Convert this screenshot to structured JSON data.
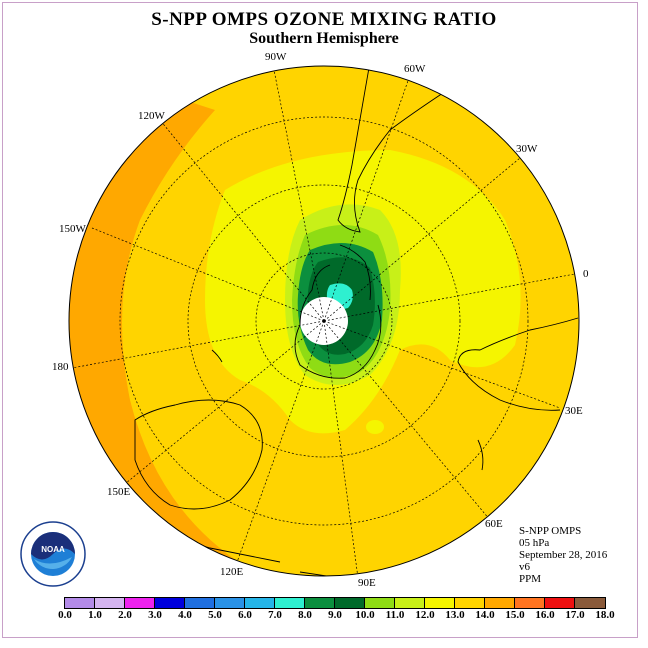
{
  "title": "S-NPP OMPS OZONE MIXING RATIO",
  "subtitle": "Southern Hemisphere",
  "longitudes": {
    "w90": "90W",
    "w60": "60W",
    "w30": "30W",
    "w120": "120W",
    "w150": "150W",
    "e0": "0",
    "w180": "180",
    "e30": "30E",
    "e60": "60E",
    "e90": "90E",
    "e120": "120E",
    "e150": "150E"
  },
  "info": {
    "instrument": "S-NPP OMPS",
    "level": "05 hPa",
    "date": "September 28, 2016",
    "version": "v6",
    "units": "PPM"
  },
  "logo_text": "NOAA",
  "colorbar": {
    "labels": [
      "0.0",
      "1.0",
      "2.0",
      "3.0",
      "4.0",
      "5.0",
      "6.0",
      "7.0",
      "8.0",
      "9.0",
      "10.0",
      "11.0",
      "12.0",
      "13.0",
      "14.0",
      "15.0",
      "16.0",
      "17.0",
      "18.0"
    ],
    "colors": [
      "#b38be8",
      "#d4b4f0",
      "#ee22ee",
      "#0000dd",
      "#1f6fe0",
      "#2a92e6",
      "#25b5e8",
      "#2ef0d0",
      "#0b8f3e",
      "#006a2a",
      "#8fdc14",
      "#c8f018",
      "#f5f500",
      "#ffd400",
      "#ffa800",
      "#ff7420",
      "#ee1010",
      "#8a5a3a"
    ]
  },
  "map_colors": {
    "outer": "#ffa800",
    "main": "#ffd400",
    "yellow": "#f5f500",
    "lightgreen": "#c8f018",
    "green": "#8fdc14",
    "darkgreen": "#0b8f3e",
    "deepgreen": "#006a2a",
    "cyan": "#2ef0d0"
  }
}
